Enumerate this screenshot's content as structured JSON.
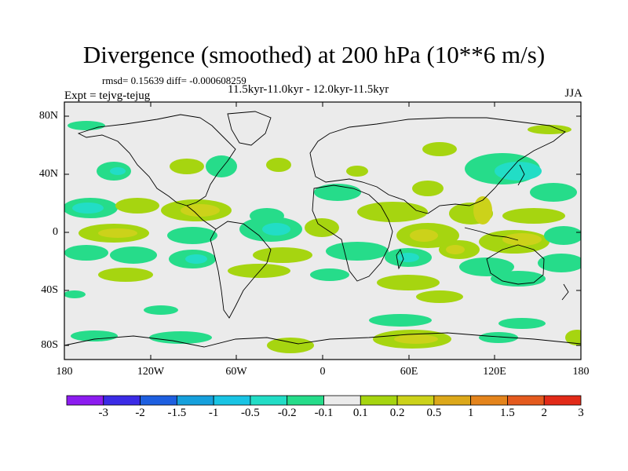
{
  "header": {
    "title": "Divergence (smoothed) at 200 hPa (10**6 m/s)",
    "stats": "rmsd= 0.15639 diff= -0.000608259",
    "period": "11.5kyr-11.0kyr - 12.0kyr-11.5kyr",
    "experiment": "Expt = tejvg-tejug",
    "season": "JJA"
  },
  "axes": {
    "lat_labels": [
      "80N",
      "40N",
      "0",
      "40S",
      "80S"
    ],
    "lon_labels": [
      "180",
      "120W",
      "60W",
      "0",
      "60E",
      "120E",
      "180"
    ]
  },
  "colorbar": {
    "labels": [
      "-3",
      "-2",
      "-1.5",
      "-1",
      "-0.5",
      "-0.2",
      "-0.1",
      "0.1",
      "0.2",
      "0.5",
      "1",
      "1.5",
      "2",
      "3"
    ],
    "colors": [
      "#8c1cf0",
      "#3b2be6",
      "#1e5fe0",
      "#16a0dc",
      "#19c4e4",
      "#22ddc6",
      "#26dc8a",
      "#ebebeb",
      "#a6d510",
      "#ccd21a",
      "#dca81a",
      "#e4841c",
      "#e45a1e",
      "#e22a18"
    ]
  }
}
